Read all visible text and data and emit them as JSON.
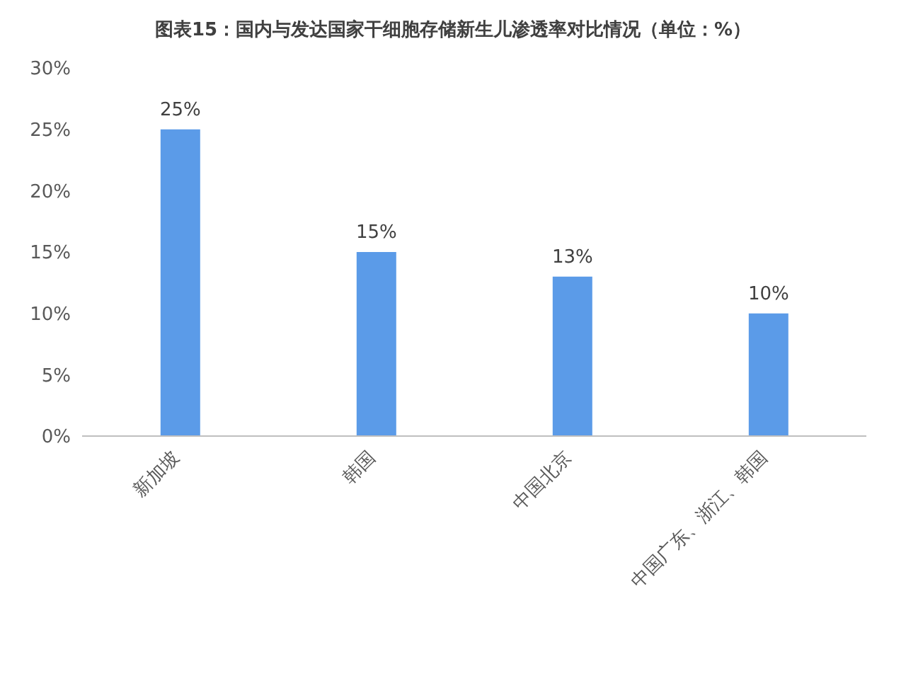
{
  "chart_data": {
    "type": "bar",
    "title": "图表15：国内与发达国家干细胞存储新生儿渗透率对比情况（单位：%）",
    "categories": [
      "新加坡",
      "韩国",
      "中国北京",
      "中国广东、浙江、韩国"
    ],
    "values": [
      25,
      15,
      13,
      10
    ],
    "value_labels": [
      "25%",
      "15%",
      "13%",
      "10%"
    ],
    "color": "#5b9be8",
    "ylim": [
      0,
      30
    ],
    "yticks": [
      {
        "value": 0,
        "label": "0%"
      },
      {
        "value": 5,
        "label": "5%"
      },
      {
        "value": 10,
        "label": "10%"
      },
      {
        "value": 15,
        "label": "15%"
      },
      {
        "value": 20,
        "label": "20%"
      },
      {
        "value": 25,
        "label": "25%"
      },
      {
        "value": 30,
        "label": "30%"
      }
    ],
    "grid": false,
    "legend": false
  }
}
